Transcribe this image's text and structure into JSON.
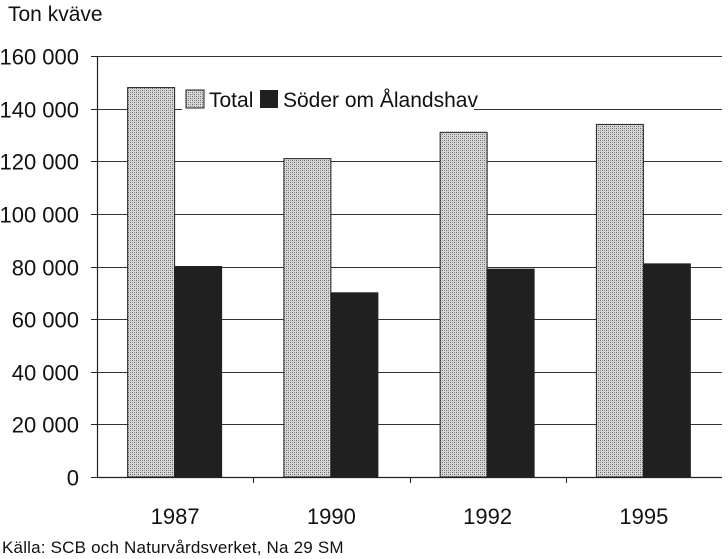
{
  "chart_data": {
    "type": "bar",
    "ylabel": "Ton kväve",
    "categories": [
      "1987",
      "1990",
      "1992",
      "1995"
    ],
    "series": [
      {
        "name": "Total",
        "values": [
          148000,
          121000,
          131000,
          134000
        ],
        "fill": "hatched-gray"
      },
      {
        "name": "Söder om Ålandshav",
        "values": [
          80000,
          70000,
          79000,
          81000
        ],
        "fill": "#202020"
      }
    ],
    "ylim": [
      0,
      160000
    ],
    "yticks": [
      0,
      20000,
      40000,
      60000,
      80000,
      100000,
      120000,
      140000,
      160000
    ],
    "ytick_labels": [
      "0",
      "20 000",
      "40 000",
      "60 000",
      "80 000",
      "100 000",
      "120 000",
      "140 000",
      "160 000"
    ],
    "grid": true,
    "legend_position": "top-right"
  },
  "source": "Källa: SCB och Naturvårdsverket, Na 29 SM",
  "colors": {
    "axis": "#222222",
    "grid": "#333333",
    "dark_bar": "#202020",
    "hatch_light": "#d8d8d8",
    "hatch_dark": "#6a6a6a"
  }
}
